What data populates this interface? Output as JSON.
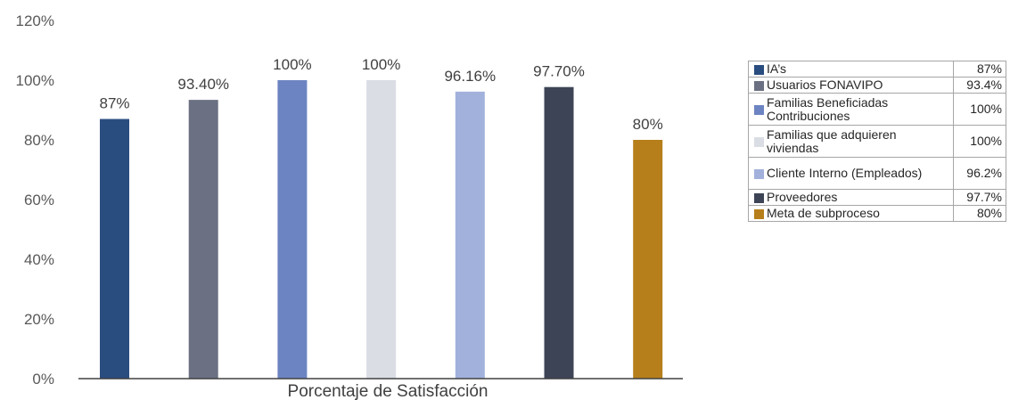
{
  "chart_data": {
    "type": "bar",
    "xlabel": "Porcentaje de Satisfacción",
    "ylim": [
      0,
      120
    ],
    "yticks": [
      "0%",
      "20%",
      "40%",
      "60%",
      "80%",
      "100%",
      "120%"
    ],
    "grid": false,
    "series": [
      {
        "name": "IA’s",
        "value": 87,
        "label": "87%",
        "color": "#2a4d80"
      },
      {
        "name": "Usuarios FONAVIPO",
        "value": 93.4,
        "label": "93.40%",
        "color": "#6b7183"
      },
      {
        "name": "Familias Beneficiadas Contribuciones",
        "value": 100,
        "label": "100%",
        "color": "#6d84c2"
      },
      {
        "name": "Familias que adquieren viviendas",
        "value": 100,
        "label": "100%",
        "color": "#dadde4"
      },
      {
        "name": "Cliente Interno (Empleados)",
        "value": 96.16,
        "label": "96.16%",
        "color": "#a2b1dc"
      },
      {
        "name": "Proveedores",
        "value": 97.7,
        "label": "97.70%",
        "color": "#3d4456"
      },
      {
        "name": "Meta de subproceso",
        "value": 80,
        "label": "80%",
        "color": "#b67f1b"
      }
    ]
  },
  "legend_table": [
    {
      "label": "IA’s",
      "value": "87%",
      "tall": false
    },
    {
      "label": "Usuarios FONAVIPO",
      "value": "93.4%",
      "tall": false
    },
    {
      "label": "Familias Beneficiadas Contribuciones",
      "value": "100%",
      "tall": true
    },
    {
      "label": "Familias que adquieren viviendas",
      "value": "100%",
      "tall": true
    },
    {
      "label": "Cliente Interno (Empleados)",
      "value": "96.2%",
      "tall": true
    },
    {
      "label": "Proveedores",
      "value": "97.7%",
      "tall": false
    },
    {
      "label": "Meta de subproceso",
      "value": "80%",
      "tall": false
    }
  ]
}
